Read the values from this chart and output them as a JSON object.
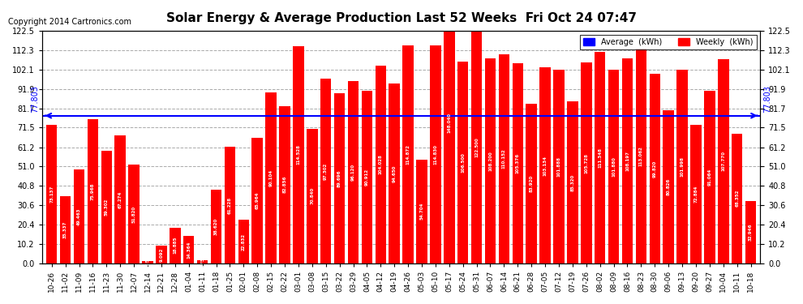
{
  "title": "Solar Energy & Average Production Last 52 Weeks  Fri Oct 24 07:47",
  "copyright": "Copyright 2014 Cartronics.com",
  "average": 77.803,
  "bar_color": "#ff0000",
  "average_line_color": "#0000ff",
  "background_color": "#ffffff",
  "grid_color": "#aaaaaa",
  "ylim": [
    0,
    122.5
  ],
  "yticks": [
    0.0,
    10.2,
    20.4,
    30.6,
    40.8,
    51.0,
    61.2,
    71.5,
    81.7,
    91.9,
    102.1,
    112.3,
    122.5
  ],
  "categories": [
    "10-26",
    "11-02",
    "11-09",
    "11-16",
    "11-23",
    "11-30",
    "12-07",
    "12-14",
    "12-21",
    "12-28",
    "01-04",
    "01-11",
    "01-18",
    "01-25",
    "02-01",
    "02-08",
    "02-15",
    "02-22",
    "03-01",
    "03-08",
    "03-15",
    "03-22",
    "03-29",
    "04-05",
    "04-12",
    "04-19",
    "04-26",
    "05-03",
    "05-10",
    "05-17",
    "05-24",
    "05-31",
    "06-07",
    "06-14",
    "06-21",
    "06-28",
    "07-05",
    "07-12",
    "07-19",
    "07-26",
    "08-02",
    "08-09",
    "08-16",
    "08-23",
    "08-30",
    "09-06",
    "09-13",
    "09-20",
    "09-27",
    "10-04",
    "10-11",
    "10-18"
  ],
  "values": [
    73.137,
    35.337,
    49.463,
    75.968,
    59.302,
    67.274,
    51.82,
    1.053,
    9.092,
    18.885,
    14.364,
    1.752,
    38.62,
    61.228,
    22.832,
    65.964,
    90.104,
    82.856,
    114.528,
    70.84,
    97.302,
    89.696,
    96.12,
    90.912,
    104.028,
    94.65,
    114.872,
    54.704,
    114.83,
    148.04,
    106.5,
    122.5,
    108.2,
    110.152,
    105.376,
    83.92,
    103.134,
    101.888,
    85.32,
    105.728,
    111.348,
    101.88,
    108.197,
    113.062,
    99.82,
    80.826,
    101.998,
    72.884,
    91.064,
    107.77,
    68.352,
    32.946
  ],
  "legend_avg_color": "#0000ff",
  "legend_weekly_color": "#ff0000",
  "legend_avg_label": "Average  (kWh)",
  "legend_weekly_label": "Weekly  (kWh)"
}
